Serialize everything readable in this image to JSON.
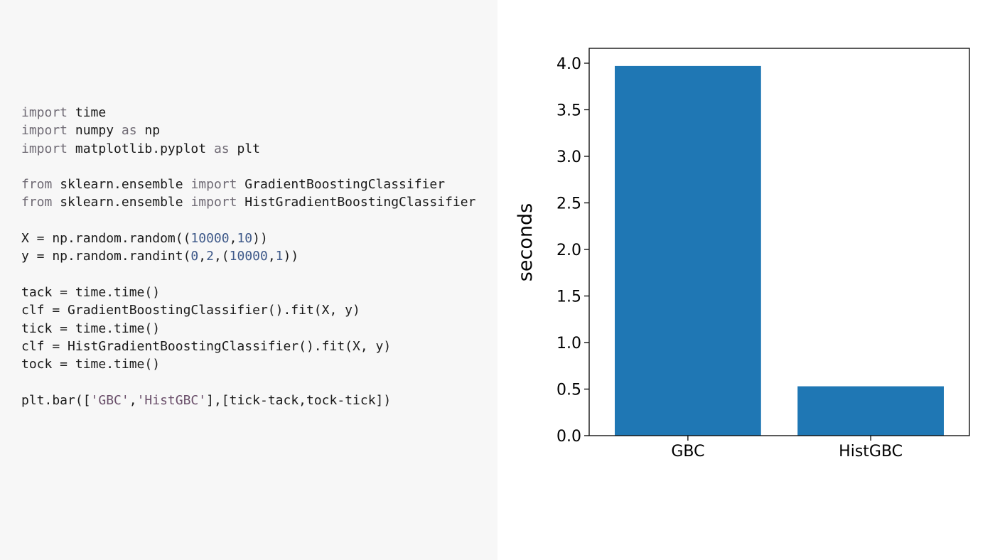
{
  "code": {
    "lines": [
      [
        {
          "t": "kw",
          "v": "import"
        },
        {
          "t": "plain",
          "v": " time"
        }
      ],
      [
        {
          "t": "kw",
          "v": "import"
        },
        {
          "t": "plain",
          "v": " numpy "
        },
        {
          "t": "kw",
          "v": "as"
        },
        {
          "t": "plain",
          "v": " np"
        }
      ],
      [
        {
          "t": "kw",
          "v": "import"
        },
        {
          "t": "plain",
          "v": " matplotlib.pyplot "
        },
        {
          "t": "kw",
          "v": "as"
        },
        {
          "t": "plain",
          "v": " plt"
        }
      ],
      [],
      [
        {
          "t": "kw",
          "v": "from"
        },
        {
          "t": "plain",
          "v": " sklearn.ensemble "
        },
        {
          "t": "kw",
          "v": "import"
        },
        {
          "t": "plain",
          "v": " GradientBoostingClassifier"
        }
      ],
      [
        {
          "t": "kw",
          "v": "from"
        },
        {
          "t": "plain",
          "v": " sklearn.ensemble "
        },
        {
          "t": "kw",
          "v": "import"
        },
        {
          "t": "plain",
          "v": " HistGradientBoostingClassifier"
        }
      ],
      [],
      [
        {
          "t": "plain",
          "v": "X = np.random.random(("
        },
        {
          "t": "num",
          "v": "10000"
        },
        {
          "t": "plain",
          "v": ","
        },
        {
          "t": "num",
          "v": "10"
        },
        {
          "t": "plain",
          "v": "))"
        }
      ],
      [
        {
          "t": "plain",
          "v": "y = np.random.randint("
        },
        {
          "t": "num",
          "v": "0"
        },
        {
          "t": "plain",
          "v": ","
        },
        {
          "t": "num",
          "v": "2"
        },
        {
          "t": "plain",
          "v": ",("
        },
        {
          "t": "num",
          "v": "10000"
        },
        {
          "t": "plain",
          "v": ","
        },
        {
          "t": "num",
          "v": "1"
        },
        {
          "t": "plain",
          "v": "))"
        }
      ],
      [],
      [
        {
          "t": "plain",
          "v": "tack = time.time()"
        }
      ],
      [
        {
          "t": "plain",
          "v": "clf = GradientBoostingClassifier().fit(X, y)"
        }
      ],
      [
        {
          "t": "plain",
          "v": "tick = time.time()"
        }
      ],
      [
        {
          "t": "plain",
          "v": "clf = HistGradientBoostingClassifier().fit(X, y)"
        }
      ],
      [
        {
          "t": "plain",
          "v": "tock = time.time()"
        }
      ],
      [],
      [
        {
          "t": "plain",
          "v": "plt.bar(["
        },
        {
          "t": "str",
          "v": "'GBC'"
        },
        {
          "t": "plain",
          "v": ","
        },
        {
          "t": "str",
          "v": "'HistGBC'"
        },
        {
          "t": "plain",
          "v": "],[tick-tack,tock-tick])"
        }
      ]
    ]
  },
  "chart_data": {
    "type": "bar",
    "categories": [
      "GBC",
      "HistGBC"
    ],
    "values": [
      3.97,
      0.53
    ],
    "title": "",
    "xlabel": "",
    "ylabel": "seconds",
    "ylim": [
      0,
      4.16
    ],
    "yticks": [
      0.0,
      0.5,
      1.0,
      1.5,
      2.0,
      2.5,
      3.0,
      3.5,
      4.0
    ],
    "ytick_labels": [
      "0.0",
      "0.5",
      "1.0",
      "1.5",
      "2.0",
      "2.5",
      "3.0",
      "3.5",
      "4.0"
    ],
    "bar_color": "#1f77b4",
    "grid": false
  }
}
